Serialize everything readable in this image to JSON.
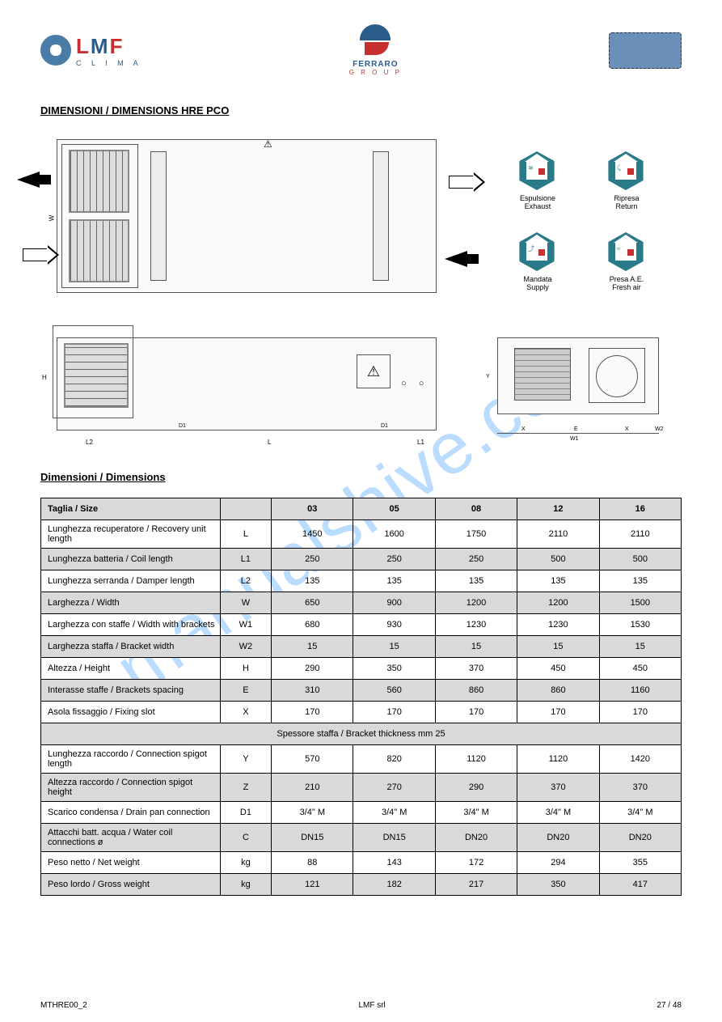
{
  "watermark": "manualshive.com",
  "header": {
    "lmf": {
      "l": "L",
      "m": "M",
      "f": "F",
      "sub": "C L I M A"
    },
    "ferraro": {
      "main": "FERRARO",
      "sub": "G R O U P"
    }
  },
  "section1_title": "DIMENSIONI / DIMENSIONS HRE PCO",
  "icons": {
    "i1": "Espulsione\nExhaust",
    "i2": "Ripresa\nReturn",
    "i3": "Mandata\nSupply",
    "i4": "Presa A.E.\nFresh air"
  },
  "dim_labels": {
    "l": "L",
    "l1": "L1",
    "l2": "L2",
    "d1": "D1",
    "w": "W",
    "w1": "W1",
    "w2": "W2",
    "x": "X",
    "e": "E",
    "y": "Y",
    "h": "H"
  },
  "section2_title": "Dimensioni / Dimensions",
  "table": {
    "header": [
      "Taglia / Size",
      "",
      "03",
      "05",
      "08",
      "12",
      "16"
    ],
    "rows": [
      {
        "grey": false,
        "c": [
          "Lunghezza recuperatore / Recovery unit length",
          "L",
          "1450",
          "1600",
          "1750",
          "2110",
          "2110"
        ]
      },
      {
        "grey": true,
        "c": [
          "Lunghezza batteria / Coil length",
          "L1",
          "250",
          "250",
          "250",
          "500",
          "500"
        ]
      },
      {
        "grey": false,
        "c": [
          "Lunghezza serranda / Damper length",
          "L2",
          "135",
          "135",
          "135",
          "135",
          "135"
        ]
      },
      {
        "grey": true,
        "c": [
          "Larghezza / Width",
          "W",
          "650",
          "900",
          "1200",
          "1200",
          "1500"
        ]
      },
      {
        "grey": false,
        "c": [
          "Larghezza con staffe / Width with brackets",
          "W1",
          "680",
          "930",
          "1230",
          "1230",
          "1530"
        ]
      },
      {
        "grey": true,
        "c": [
          "Larghezza staffa / Bracket width",
          "W2",
          "15",
          "15",
          "15",
          "15",
          "15"
        ]
      },
      {
        "grey": false,
        "c": [
          "Altezza / Height",
          "H",
          "290",
          "350",
          "370",
          "450",
          "450"
        ]
      },
      {
        "grey": true,
        "c": [
          "Interasse staffe / Brackets spacing",
          "E",
          "310",
          "560",
          "860",
          "860",
          "1160"
        ]
      },
      {
        "grey": false,
        "c": [
          "Asola fissaggio / Fixing slot",
          "X",
          "170",
          "170",
          "170",
          "170",
          "170"
        ]
      },
      {
        "grey": true,
        "span": true,
        "c": [
          "Spessore staffa / Bracket thickness mm 25"
        ]
      },
      {
        "grey": false,
        "c": [
          "Lunghezza raccordo / Connection spigot length",
          "Y",
          "570",
          "820",
          "1120",
          "1120",
          "1420"
        ]
      },
      {
        "grey": true,
        "c": [
          "Altezza raccordo / Connection spigot height",
          "Z",
          "210",
          "270",
          "290",
          "370",
          "370"
        ]
      },
      {
        "grey": false,
        "c": [
          "Scarico condensa / Drain pan connection",
          "D1",
          "3/4\" M",
          "3/4\" M",
          "3/4\" M",
          "3/4\" M",
          "3/4\" M"
        ]
      },
      {
        "grey": true,
        "c": [
          "Attacchi batt. acqua / Water coil connections ø",
          "C",
          "DN15",
          "DN15",
          "DN20",
          "DN20",
          "DN20"
        ]
      },
      {
        "grey": false,
        "c": [
          "Peso netto / Net weight",
          "kg",
          "88",
          "143",
          "172",
          "294",
          "355"
        ]
      },
      {
        "grey": true,
        "c": [
          "Peso lordo / Gross weight",
          "kg",
          "121",
          "182",
          "217",
          "350",
          "417"
        ]
      }
    ]
  },
  "footer": {
    "left": "MTHRE00_2",
    "center": "LMF srl",
    "right": "27 / 48"
  }
}
